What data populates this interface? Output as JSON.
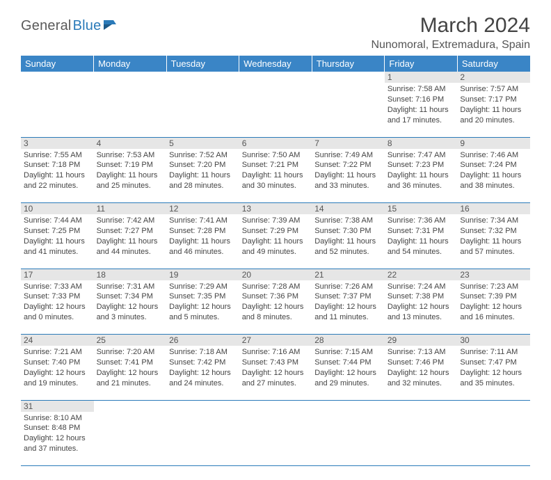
{
  "logo": {
    "text_general": "General",
    "text_blue": "Blue"
  },
  "title": "March 2024",
  "location": "Nunomoral, Extremadura, Spain",
  "colors": {
    "header_bg": "#3a85c6",
    "header_text": "#ffffff",
    "daynum_bg": "#e6e6e6",
    "row_divider": "#2a7ab9",
    "body_text": "#444444",
    "logo_gray": "#5a5a5a",
    "logo_blue": "#2a7ab9",
    "page_bg": "#ffffff"
  },
  "day_headers": [
    "Sunday",
    "Monday",
    "Tuesday",
    "Wednesday",
    "Thursday",
    "Friday",
    "Saturday"
  ],
  "weeks": [
    [
      null,
      null,
      null,
      null,
      null,
      {
        "n": "1",
        "sr": "7:58 AM",
        "ss": "7:16 PM",
        "dl": "11 hours and 17 minutes."
      },
      {
        "n": "2",
        "sr": "7:57 AM",
        "ss": "7:17 PM",
        "dl": "11 hours and 20 minutes."
      }
    ],
    [
      {
        "n": "3",
        "sr": "7:55 AM",
        "ss": "7:18 PM",
        "dl": "11 hours and 22 minutes."
      },
      {
        "n": "4",
        "sr": "7:53 AM",
        "ss": "7:19 PM",
        "dl": "11 hours and 25 minutes."
      },
      {
        "n": "5",
        "sr": "7:52 AM",
        "ss": "7:20 PM",
        "dl": "11 hours and 28 minutes."
      },
      {
        "n": "6",
        "sr": "7:50 AM",
        "ss": "7:21 PM",
        "dl": "11 hours and 30 minutes."
      },
      {
        "n": "7",
        "sr": "7:49 AM",
        "ss": "7:22 PM",
        "dl": "11 hours and 33 minutes."
      },
      {
        "n": "8",
        "sr": "7:47 AM",
        "ss": "7:23 PM",
        "dl": "11 hours and 36 minutes."
      },
      {
        "n": "9",
        "sr": "7:46 AM",
        "ss": "7:24 PM",
        "dl": "11 hours and 38 minutes."
      }
    ],
    [
      {
        "n": "10",
        "sr": "7:44 AM",
        "ss": "7:25 PM",
        "dl": "11 hours and 41 minutes."
      },
      {
        "n": "11",
        "sr": "7:42 AM",
        "ss": "7:27 PM",
        "dl": "11 hours and 44 minutes."
      },
      {
        "n": "12",
        "sr": "7:41 AM",
        "ss": "7:28 PM",
        "dl": "11 hours and 46 minutes."
      },
      {
        "n": "13",
        "sr": "7:39 AM",
        "ss": "7:29 PM",
        "dl": "11 hours and 49 minutes."
      },
      {
        "n": "14",
        "sr": "7:38 AM",
        "ss": "7:30 PM",
        "dl": "11 hours and 52 minutes."
      },
      {
        "n": "15",
        "sr": "7:36 AM",
        "ss": "7:31 PM",
        "dl": "11 hours and 54 minutes."
      },
      {
        "n": "16",
        "sr": "7:34 AM",
        "ss": "7:32 PM",
        "dl": "11 hours and 57 minutes."
      }
    ],
    [
      {
        "n": "17",
        "sr": "7:33 AM",
        "ss": "7:33 PM",
        "dl": "12 hours and 0 minutes."
      },
      {
        "n": "18",
        "sr": "7:31 AM",
        "ss": "7:34 PM",
        "dl": "12 hours and 3 minutes."
      },
      {
        "n": "19",
        "sr": "7:29 AM",
        "ss": "7:35 PM",
        "dl": "12 hours and 5 minutes."
      },
      {
        "n": "20",
        "sr": "7:28 AM",
        "ss": "7:36 PM",
        "dl": "12 hours and 8 minutes."
      },
      {
        "n": "21",
        "sr": "7:26 AM",
        "ss": "7:37 PM",
        "dl": "12 hours and 11 minutes."
      },
      {
        "n": "22",
        "sr": "7:24 AM",
        "ss": "7:38 PM",
        "dl": "12 hours and 13 minutes."
      },
      {
        "n": "23",
        "sr": "7:23 AM",
        "ss": "7:39 PM",
        "dl": "12 hours and 16 minutes."
      }
    ],
    [
      {
        "n": "24",
        "sr": "7:21 AM",
        "ss": "7:40 PM",
        "dl": "12 hours and 19 minutes."
      },
      {
        "n": "25",
        "sr": "7:20 AM",
        "ss": "7:41 PM",
        "dl": "12 hours and 21 minutes."
      },
      {
        "n": "26",
        "sr": "7:18 AM",
        "ss": "7:42 PM",
        "dl": "12 hours and 24 minutes."
      },
      {
        "n": "27",
        "sr": "7:16 AM",
        "ss": "7:43 PM",
        "dl": "12 hours and 27 minutes."
      },
      {
        "n": "28",
        "sr": "7:15 AM",
        "ss": "7:44 PM",
        "dl": "12 hours and 29 minutes."
      },
      {
        "n": "29",
        "sr": "7:13 AM",
        "ss": "7:46 PM",
        "dl": "12 hours and 32 minutes."
      },
      {
        "n": "30",
        "sr": "7:11 AM",
        "ss": "7:47 PM",
        "dl": "12 hours and 35 minutes."
      }
    ],
    [
      {
        "n": "31",
        "sr": "8:10 AM",
        "ss": "8:48 PM",
        "dl": "12 hours and 37 minutes."
      },
      null,
      null,
      null,
      null,
      null,
      null
    ]
  ],
  "labels": {
    "sunrise": "Sunrise: ",
    "sunset": "Sunset: ",
    "daylight": "Daylight: "
  }
}
